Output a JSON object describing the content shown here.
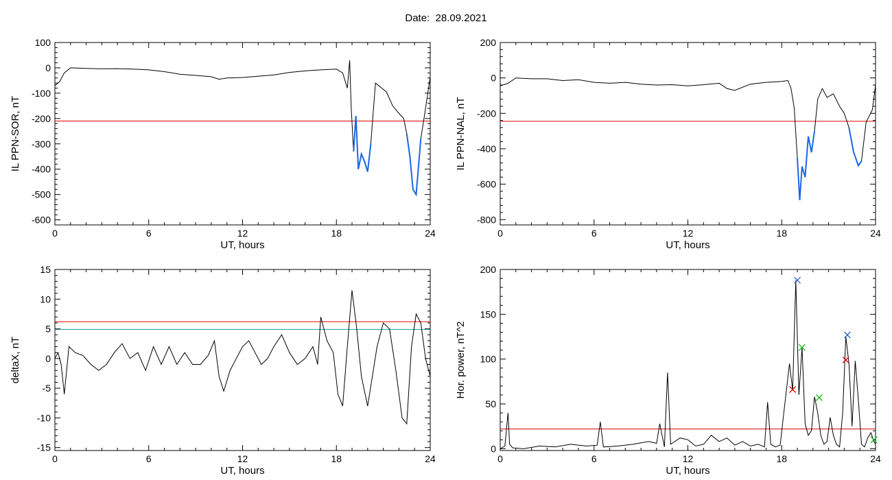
{
  "title": "Date:  28.09.2021",
  "colors": {
    "trace": "#000000",
    "highlight": "#1a66e6",
    "threshold_red": "#e00000",
    "threshold_teal": "#1f9a9a",
    "marker_red": "#e00000",
    "marker_green": "#19b319",
    "marker_blue": "#1f5fd6"
  },
  "chart_data": [
    {
      "type": "line",
      "ylabel": "IL PPN-SOR, nT",
      "xlabel": "UT, hours",
      "xlim": [
        0,
        24
      ],
      "ylim": [
        -620,
        100
      ],
      "xticks": [
        0,
        6,
        12,
        18,
        24
      ],
      "yticks": [
        100,
        0,
        -100,
        -200,
        -300,
        -400,
        -500,
        -600
      ],
      "thresholds": [
        {
          "value": -210,
          "color": "red"
        }
      ],
      "series": [
        {
          "x": [
            0,
            0.3,
            0.6,
            1,
            2,
            3,
            4,
            5,
            6,
            7,
            8,
            9,
            10,
            10.5,
            11,
            12,
            13,
            14,
            15,
            16,
            17,
            18,
            18.4,
            18.7,
            18.85,
            18.95,
            19.1,
            19.25,
            19.4,
            19.6,
            19.8,
            20.0,
            20.2,
            20.5,
            20.8,
            21.2,
            21.6,
            22.0,
            22.3,
            22.5,
            22.7,
            22.9,
            23.1,
            23.4,
            23.6,
            23.8,
            24
          ],
          "y": [
            -70,
            -55,
            -20,
            0,
            -2,
            -4,
            -3,
            -5,
            -8,
            -15,
            -25,
            -30,
            -35,
            -45,
            -40,
            -38,
            -33,
            -28,
            -18,
            -12,
            -8,
            -5,
            -20,
            -80,
            30,
            -160,
            -330,
            -190,
            -400,
            -340,
            -370,
            -410,
            -300,
            -60,
            -75,
            -95,
            -150,
            -180,
            -200,
            -260,
            -350,
            -480,
            -500,
            -280,
            -200,
            -120,
            -35
          ]
        }
      ],
      "highlight_segments": [
        {
          "from": 19.0,
          "to": 20.2
        },
        {
          "from": 22.4,
          "to": 23.4
        }
      ]
    },
    {
      "type": "line",
      "ylabel": "IL PPN-NAL, nT",
      "xlabel": "UT, hours",
      "xlim": [
        0,
        24
      ],
      "ylim": [
        -830,
        200
      ],
      "xticks": [
        0,
        6,
        12,
        18,
        24
      ],
      "yticks": [
        200,
        0,
        -200,
        -400,
        -600,
        -800
      ],
      "thresholds": [
        {
          "value": -245,
          "color": "red"
        }
      ],
      "series": [
        {
          "x": [
            0,
            0.5,
            1,
            2,
            3,
            4,
            5,
            6,
            7,
            8,
            9,
            10,
            11,
            12,
            13,
            14,
            14.5,
            15,
            16,
            17,
            18,
            18.4,
            18.6,
            18.8,
            19.0,
            19.15,
            19.3,
            19.5,
            19.7,
            19.9,
            20.1,
            20.3,
            20.6,
            20.9,
            21.3,
            21.7,
            22.0,
            22.3,
            22.6,
            22.9,
            23.1,
            23.4,
            23.8,
            24
          ],
          "y": [
            -45,
            -30,
            0,
            -5,
            -5,
            -15,
            -10,
            -25,
            -30,
            -25,
            -35,
            -40,
            -38,
            -45,
            -38,
            -30,
            -60,
            -70,
            -35,
            -25,
            -20,
            -15,
            -60,
            -170,
            -450,
            -690,
            -500,
            -560,
            -330,
            -420,
            -300,
            -120,
            -60,
            -110,
            -90,
            -160,
            -200,
            -280,
            -420,
            -495,
            -470,
            -250,
            -180,
            -40
          ]
        }
      ],
      "highlight_segments": [
        {
          "from": 18.9,
          "to": 20.2
        },
        {
          "from": 22.3,
          "to": 23.3
        }
      ]
    },
    {
      "type": "line",
      "ylabel": "deltaX, nT",
      "xlabel": "UT, hours",
      "xlim": [
        0,
        24
      ],
      "ylim": [
        -15.5,
        15
      ],
      "xticks": [
        0,
        6,
        12,
        18,
        24
      ],
      "yticks": [
        15,
        10,
        5,
        0,
        -5,
        -10,
        -15
      ],
      "thresholds": [
        {
          "value": 6.2,
          "color": "red"
        },
        {
          "value": 4.9,
          "color": "teal"
        }
      ],
      "series": [
        {
          "x": [
            0,
            0.2,
            0.4,
            0.6,
            0.9,
            1.3,
            1.8,
            2.3,
            2.8,
            3.3,
            3.8,
            4.3,
            4.8,
            5.3,
            5.8,
            6.3,
            6.8,
            7.3,
            7.8,
            8.3,
            8.8,
            9.3,
            9.8,
            10.2,
            10.5,
            10.8,
            11.2,
            11.6,
            12.0,
            12.4,
            12.8,
            13.2,
            13.6,
            14.0,
            14.5,
            15.0,
            15.5,
            16.0,
            16.5,
            16.8,
            17.0,
            17.4,
            17.8,
            18.1,
            18.4,
            18.7,
            19.0,
            19.3,
            19.6,
            20.0,
            20.3,
            20.6,
            21.0,
            21.4,
            21.8,
            22.2,
            22.5,
            22.8,
            23.1,
            23.4,
            23.7,
            24
          ],
          "y": [
            0,
            1,
            -1,
            -6,
            2,
            1,
            0.5,
            -1,
            -2,
            -1,
            1,
            2.5,
            0,
            1,
            -2,
            2,
            -1,
            2,
            -1,
            1,
            -1,
            -1,
            0.5,
            3,
            -3,
            -5.5,
            -2,
            0,
            2,
            3,
            1,
            -1,
            0,
            2,
            4,
            1,
            -1,
            0,
            2,
            -1,
            7,
            3,
            1,
            -6,
            -8,
            2,
            11.5,
            5,
            -3,
            -8,
            -3,
            2,
            6,
            5,
            -2,
            -10,
            -11,
            2,
            7.5,
            6,
            0,
            -3
          ]
        }
      ]
    },
    {
      "type": "line",
      "ylabel": "Hor. power, nT^2",
      "xlabel": "UT, hours",
      "xlim": [
        0,
        24
      ],
      "ylim": [
        -2,
        200
      ],
      "xticks": [
        0,
        6,
        12,
        18,
        24
      ],
      "yticks": [
        0,
        50,
        100,
        150,
        200
      ],
      "thresholds": [
        {
          "value": 22,
          "color": "red"
        }
      ],
      "series": [
        {
          "x": [
            0,
            0.3,
            0.5,
            0.6,
            0.8,
            1.5,
            2.5,
            3.5,
            4.5,
            5.5,
            6.2,
            6.4,
            6.6,
            7.5,
            8.5,
            9.5,
            10.0,
            10.2,
            10.5,
            10.7,
            10.9,
            11.5,
            12.0,
            12.5,
            13.0,
            13.5,
            14.0,
            14.5,
            15.0,
            15.5,
            16.0,
            16.5,
            16.9,
            17.1,
            17.3,
            17.6,
            17.9,
            18.2,
            18.5,
            18.7,
            18.9,
            19.1,
            19.3,
            19.5,
            19.7,
            19.9,
            20.1,
            20.3,
            20.5,
            20.7,
            20.9,
            21.1,
            21.3,
            21.5,
            21.7,
            21.9,
            22.1,
            22.3,
            22.5,
            22.7,
            22.9,
            23.1,
            23.3,
            23.5,
            23.7,
            23.9,
            24
          ],
          "y": [
            0,
            3,
            40,
            5,
            1,
            0,
            3,
            2,
            5,
            3,
            4,
            30,
            2,
            3,
            5,
            8,
            6,
            28,
            2,
            85,
            5,
            12,
            10,
            3,
            5,
            15,
            8,
            12,
            4,
            8,
            3,
            5,
            2,
            52,
            5,
            2,
            4,
            50,
            95,
            65,
            188,
            60,
            113,
            28,
            15,
            20,
            58,
            40,
            15,
            5,
            8,
            35,
            15,
            5,
            2,
            40,
            125,
            95,
            25,
            98,
            55,
            5,
            2,
            12,
            18,
            8,
            5
          ]
        }
      ],
      "markers": [
        {
          "x": 19.0,
          "y": 188,
          "color": "blue"
        },
        {
          "x": 22.2,
          "y": 127,
          "color": "blue"
        },
        {
          "x": 19.3,
          "y": 113,
          "color": "green"
        },
        {
          "x": 20.4,
          "y": 57,
          "color": "green"
        },
        {
          "x": 23.9,
          "y": 10,
          "color": "green"
        },
        {
          "x": 18.7,
          "y": 66,
          "color": "red"
        },
        {
          "x": 22.1,
          "y": 99,
          "color": "red"
        }
      ]
    }
  ]
}
